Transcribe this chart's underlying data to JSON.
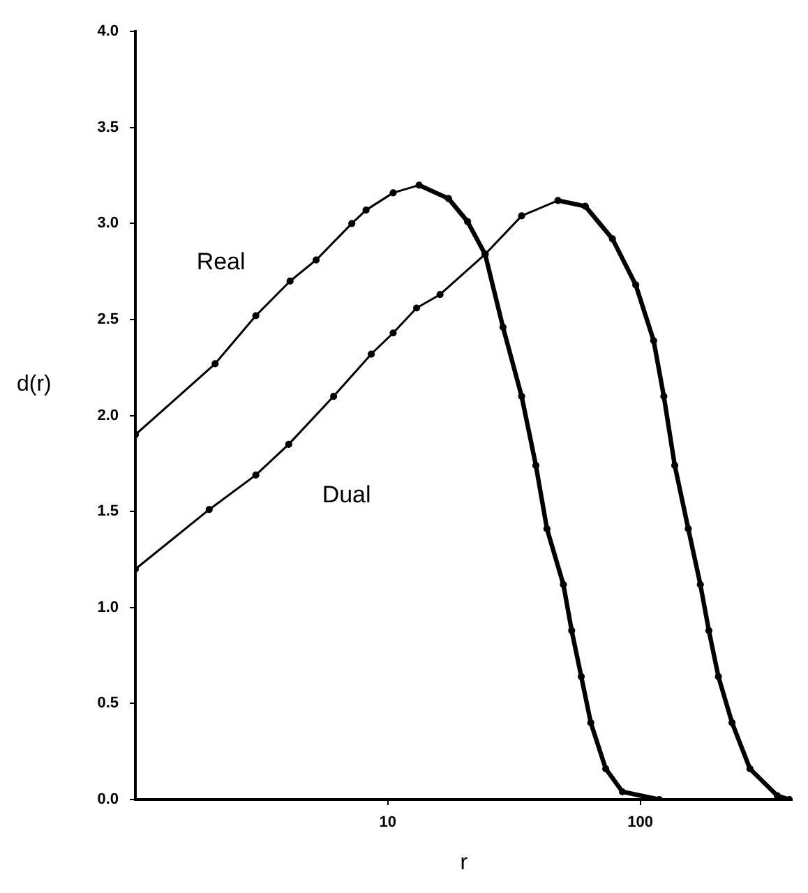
{
  "chart_data": {
    "type": "line",
    "xlabel": "r",
    "ylabel": "d(r)",
    "log": "x",
    "xlim": [
      1,
      400
    ],
    "xticks": [
      10,
      100
    ],
    "ylim": [
      0,
      4
    ],
    "yticks": [
      {
        "value": 0,
        "label": "0.0"
      },
      {
        "value": 0.5,
        "label": "0.5"
      },
      {
        "value": 1,
        "label": "1.0"
      },
      {
        "value": 1.5,
        "label": "1.5"
      },
      {
        "value": 2,
        "label": "2.0"
      },
      {
        "value": 2.5,
        "label": "2.5"
      },
      {
        "value": 3,
        "label": "3.0"
      },
      {
        "value": 3.5,
        "label": "3.5"
      },
      {
        "value": 4,
        "label": "4.0"
      }
    ],
    "grid": false,
    "legend": false,
    "marker": "circle",
    "line_style": "solid",
    "series": [
      {
        "name": "Real",
        "color": "#000000",
        "x": [
          1,
          2.07,
          3,
          4.1,
          5.2,
          7.2,
          8.2,
          10.5,
          13.3,
          17.4,
          20.7,
          24.3,
          28.6,
          33.9,
          38.6,
          42.7,
          49.6,
          53.5,
          58.4,
          63.7,
          73,
          85,
          119
        ],
        "values": [
          1.9,
          2.27,
          2.52,
          2.7,
          2.81,
          3.0,
          3.07,
          3.16,
          3.2,
          3.13,
          3.01,
          2.84,
          2.46,
          2.1,
          1.74,
          1.41,
          1.12,
          0.88,
          0.64,
          0.4,
          0.16,
          0.04,
          0
        ]
      },
      {
        "name": "Dual",
        "color": "#000000",
        "x": [
          1,
          1.96,
          3,
          4.05,
          6.1,
          8.6,
          10.5,
          13,
          16.1,
          24.3,
          33.9,
          47.2,
          60.6,
          77.6,
          96,
          113,
          124,
          137,
          155,
          173,
          187,
          204,
          231,
          272,
          349,
          390
        ],
        "values": [
          1.2,
          1.51,
          1.69,
          1.85,
          2.1,
          2.32,
          2.43,
          2.56,
          2.63,
          2.84,
          3.04,
          3.12,
          3.09,
          2.92,
          2.68,
          2.39,
          2.1,
          1.74,
          1.41,
          1.12,
          0.88,
          0.64,
          0.4,
          0.16,
          0.02,
          0
        ]
      }
    ]
  }
}
